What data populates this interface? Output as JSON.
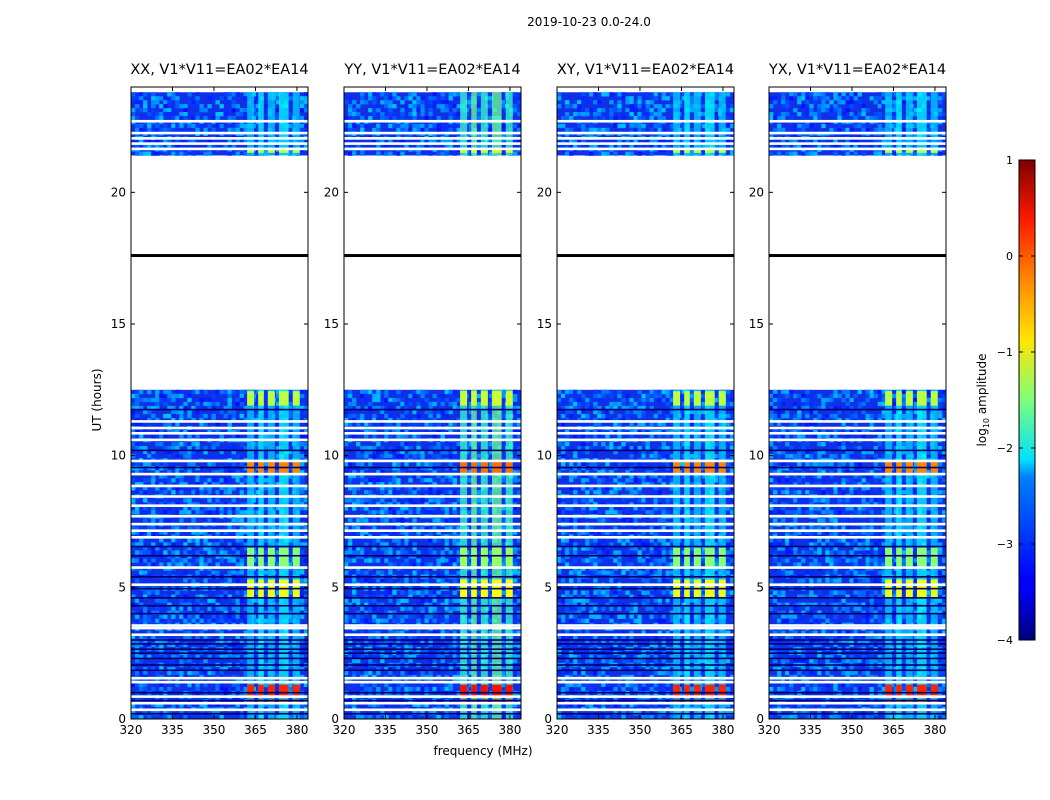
{
  "chart_data": {
    "type": "heatmap",
    "suptitle": "2019-10-23 0.0-24.0",
    "xlabel": "frequency (MHz)",
    "ylabel": "UT (hours)",
    "xlim": [
      320,
      384
    ],
    "ylim": [
      0,
      24
    ],
    "xticks": [
      320,
      335,
      350,
      365,
      380
    ],
    "yticks": [
      0,
      5,
      10,
      15,
      20
    ],
    "colorbar": {
      "label": "log10 amplitude",
      "label_base": "log",
      "label_sub": "10",
      "label_rest": " amplitude",
      "range": [
        -4,
        1
      ],
      "ticks": [
        "1",
        "0",
        "−1",
        "−2",
        "−3",
        "−4"
      ],
      "colormap": "jet"
    },
    "panels": [
      {
        "title": "XX, V1*V11=EA02*EA14",
        "rfi_level": 0.55
      },
      {
        "title": "YY, V1*V11=EA02*EA14",
        "rfi_level": 0.72
      },
      {
        "title": "XY, V1*V11=EA02*EA14",
        "rfi_level": 0.55
      },
      {
        "title": "YX, V1*V11=EA02*EA14",
        "rfi_level": 0.55
      }
    ],
    "data_blocks_hours": [
      [
        0,
        12.5
      ],
      [
        21.4,
        23.8
      ]
    ],
    "flagged_rows_hours": [
      0.35,
      0.6,
      0.85,
      1.4,
      1.55,
      3.2,
      3.45,
      3.55,
      5.1,
      5.75,
      6.9,
      7.15,
      7.4,
      7.7,
      8.1,
      8.45,
      8.85,
      9.3,
      9.8,
      10.6,
      10.85,
      11.05,
      11.3,
      21.65,
      21.85,
      22.05,
      22.25,
      22.7
    ],
    "dark_rows_hours": [
      0.2,
      0.7,
      1.0,
      1.85,
      2.05,
      2.3,
      2.5,
      2.65,
      2.85,
      3.0,
      4.0,
      4.3,
      4.6,
      4.95,
      5.4,
      6.2,
      6.55,
      9.55,
      10.2,
      11.75,
      17.6
    ],
    "bright_bands_mhz": [
      [
        362,
        364.5
      ],
      [
        366,
        368
      ],
      [
        369.5,
        372
      ],
      [
        373.5,
        377
      ],
      [
        378.5,
        381
      ]
    ],
    "bright_strips_hours": [
      [
        0.55,
        0.75,
        0.85
      ],
      [
        0.85,
        1.3,
        0.9
      ],
      [
        9.35,
        9.85,
        0.8
      ],
      [
        4.6,
        5.3,
        0.65
      ],
      [
        5.8,
        6.5,
        0.55
      ],
      [
        11.9,
        12.45,
        0.6
      ],
      [
        21.5,
        21.65,
        0.6
      ]
    ],
    "seed": 7
  }
}
